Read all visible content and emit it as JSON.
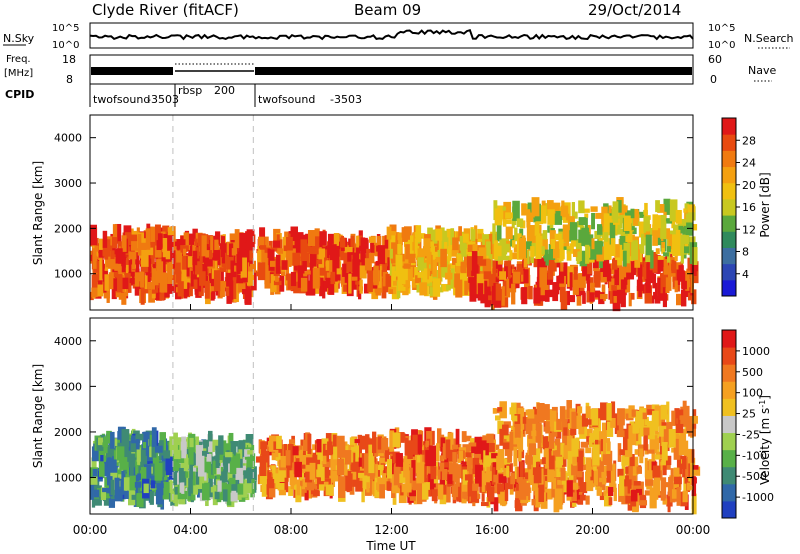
{
  "header": {
    "station": "Clyde River (fitACF)",
    "beam": "Beam 09",
    "date": "29/Oct/2014"
  },
  "top_panels": {
    "noise": {
      "left_label": "N.Sky",
      "right_label": "N.Search",
      "left_ticks": [
        "10^5",
        "10^0"
      ],
      "right_ticks": [
        "10^5",
        "10^0"
      ]
    },
    "freq": {
      "left_label_line1": "Freq.",
      "left_label_line2": "[MHz]",
      "right_label": "Nave",
      "left_ticks": [
        "18",
        "8"
      ],
      "right_ticks": [
        "60",
        "0"
      ]
    },
    "cpid": {
      "label": "CPID",
      "modes": [
        {
          "name": "twofsound",
          "id": "-3503",
          "start_hour": 0,
          "end_hour": 3.3
        },
        {
          "name": "rbsp",
          "id": "200",
          "start_hour": 3.3,
          "end_hour": 6.5
        },
        {
          "name": "twofsound",
          "id": "-3503",
          "start_hour": 6.5,
          "end_hour": 24
        }
      ]
    }
  },
  "chart_data": [
    {
      "type": "heatmap",
      "title": "",
      "ylabel": "Slant Range [km]",
      "xlabel": "",
      "quantity": "Power",
      "colorbar_label": "Power [dB]",
      "ylim": [
        200,
        4500
      ],
      "yticks": [
        1000,
        2000,
        3000,
        4000
      ],
      "xlim_hours": [
        0,
        24
      ],
      "colorbar_ticks": [
        "4",
        "8",
        "12",
        "16",
        "20",
        "24",
        "28"
      ],
      "colorbar_colors": [
        "#1a1ad6",
        "#2c46b4",
        "#3c6ea0",
        "#2f8a5c",
        "#5aa83c",
        "#c8c820",
        "#f0c010",
        "#f4a010",
        "#f07a10",
        "#e84a10",
        "#e01818"
      ],
      "echo_regions": [
        {
          "t0": 0.0,
          "t1": 3.2,
          "r0": 500,
          "r1": 1900,
          "level": 0.85
        },
        {
          "t0": 3.3,
          "t1": 6.4,
          "r0": 550,
          "r1": 1800,
          "level": 0.88
        },
        {
          "t0": 6.6,
          "t1": 11.8,
          "r0": 650,
          "r1": 1800,
          "level": 0.85
        },
        {
          "t0": 11.8,
          "t1": 16.0,
          "r0": 600,
          "r1": 1900,
          "level": 0.65
        },
        {
          "t0": 15.0,
          "t1": 24.0,
          "r0": 400,
          "r1": 1300,
          "level": 0.9
        },
        {
          "t0": 16.0,
          "t1": 24.0,
          "r0": 1300,
          "r1": 2500,
          "level": 0.55
        }
      ]
    },
    {
      "type": "heatmap",
      "title": "",
      "ylabel": "Slant Range [km]",
      "xlabel": "Time UT",
      "quantity": "Velocity",
      "colorbar_label": "Velocity [m s^-1]",
      "ylim": [
        200,
        4500
      ],
      "yticks": [
        1000,
        2000,
        3000,
        4000
      ],
      "xlim_hours": [
        0,
        24
      ],
      "xtick_labels": [
        "00:00",
        "04:00",
        "08:00",
        "12:00",
        "16:00",
        "20:00",
        "00:00"
      ],
      "colorbar_ticks": [
        "1000",
        "500",
        "100",
        "25",
        "-25",
        "-100",
        "-500",
        "-1000"
      ],
      "colorbar_colors": [
        "#2040c0",
        "#3068a8",
        "#3f8a74",
        "#58b048",
        "#9fd050",
        "#c8c8c8",
        "#f0c020",
        "#f5a020",
        "#f07820",
        "#e84818",
        "#e01818"
      ],
      "echo_regions": [
        {
          "t0": 0.0,
          "t1": 3.2,
          "r0": 500,
          "r1": 1900,
          "level": 0.25
        },
        {
          "t0": 3.3,
          "t1": 6.4,
          "r0": 550,
          "r1": 1800,
          "level": 0.35
        },
        {
          "t0": 6.6,
          "t1": 11.8,
          "r0": 650,
          "r1": 1800,
          "level": 0.75
        },
        {
          "t0": 11.8,
          "t1": 16.0,
          "r0": 600,
          "r1": 1900,
          "level": 0.78
        },
        {
          "t0": 15.0,
          "t1": 24.0,
          "r0": 400,
          "r1": 1300,
          "level": 0.78
        },
        {
          "t0": 16.0,
          "t1": 24.0,
          "r0": 1300,
          "r1": 2500,
          "level": 0.72
        }
      ]
    }
  ]
}
